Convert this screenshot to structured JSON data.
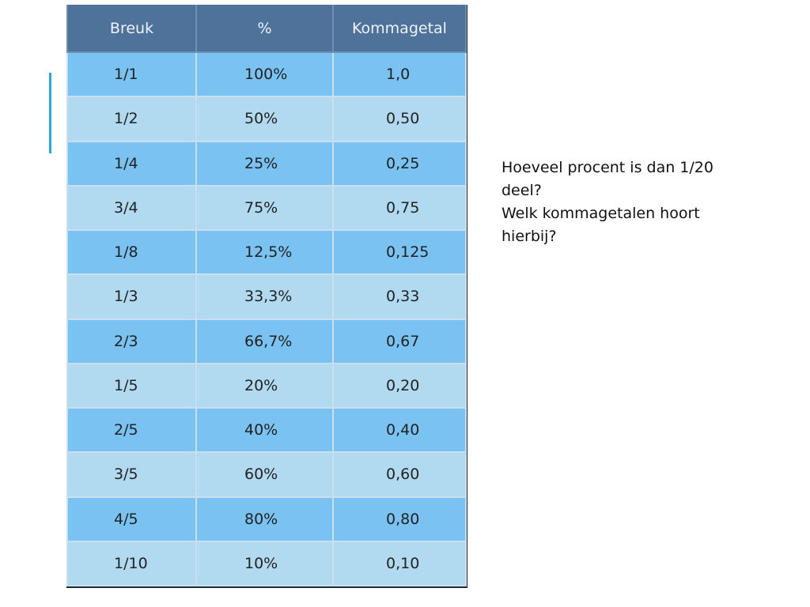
{
  "table": {
    "headers": [
      "Breuk",
      "%",
      "Kommagetal"
    ],
    "rows": [
      [
        "1/1",
        "100%",
        "1,0"
      ],
      [
        "1/2",
        "50%",
        "0,50"
      ],
      [
        "1/4",
        "25%",
        "0,25"
      ],
      [
        "3/4",
        "75%",
        "0,75"
      ],
      [
        "1/8",
        "12,5%",
        "0,125"
      ],
      [
        "1/3",
        "33,3%",
        "0,33"
      ],
      [
        "2/3",
        "66,7%",
        "0,67"
      ],
      [
        "1/5",
        "20%",
        "0,20"
      ],
      [
        "2/5",
        "40%",
        "0,40"
      ],
      [
        "3/5",
        "60%",
        "0,60"
      ],
      [
        "4/5",
        "80%",
        "0,80"
      ],
      [
        "1/10",
        "10%",
        "0,10"
      ]
    ]
  },
  "question": {
    "line1": "Hoeveel procent is dan 1/20 deel?",
    "line2": "Welk kommagetalen hoort hierbij?"
  },
  "colors": {
    "header_bg": "#4f729a",
    "row_dark": "#7ac2f1",
    "row_light": "#b1d9f0",
    "accent": "#2aa7d6"
  }
}
